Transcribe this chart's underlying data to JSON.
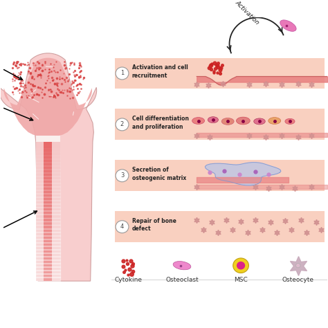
{
  "bg_color": "#ffffff",
  "bone_outer_color": "#f8cece",
  "bone_spongy_color": "#f0a8a8",
  "bone_cortex_color": "#f7c8c8",
  "bone_marrow_color": "#e86060",
  "shaft_fade_color": "#fde8e8",
  "growth_plate_color": "#f5e0d8",
  "step_labels": [
    "Activation and cell\nrecruitment",
    "Cell differentiation\nand proliferation",
    "Secretion of\nosteogenic matrix",
    "Repair of bone\ndefect"
  ],
  "legend_labels": [
    "Cytokine",
    "Osteoclast",
    "MSC",
    "Osteocyte"
  ],
  "panel_bg": "#f9d0c0",
  "activation_label": "Activation",
  "figure_width": 4.74,
  "figure_height": 4.74,
  "dpi": 100
}
